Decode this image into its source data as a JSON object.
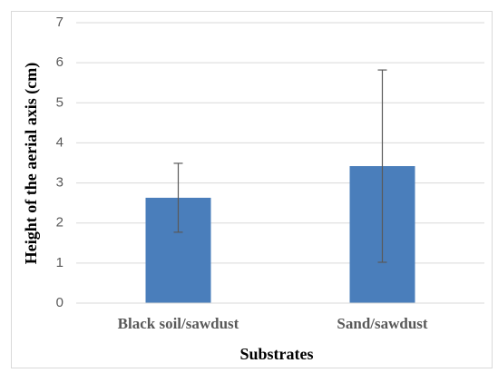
{
  "chart_data": {
    "type": "bar",
    "x_label": "Substrates",
    "y_label": "Height of the aerial axis (cm)",
    "categories": [
      "Black soil/sawdust",
      "Sand/sawdust"
    ],
    "series": [
      {
        "color": "#4a7ebb",
        "values": [
          2.63,
          3.42
        ],
        "errors": [
          0.86,
          2.4
        ]
      }
    ],
    "ylim": [
      0,
      7
    ],
    "yticks": [
      0,
      1,
      2,
      3,
      4,
      5,
      6,
      7
    ],
    "grid": true
  }
}
